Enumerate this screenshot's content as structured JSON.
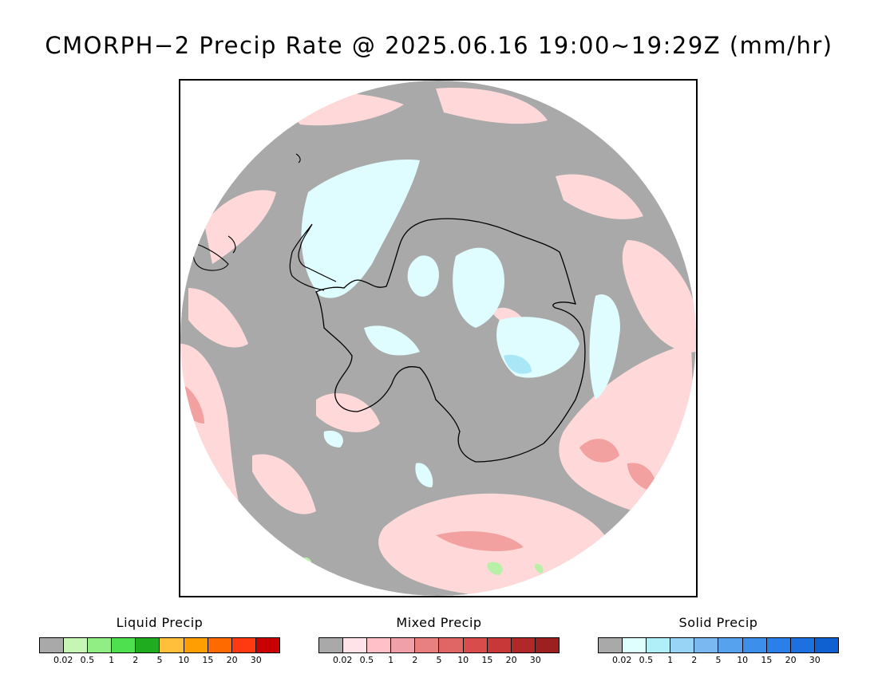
{
  "title": "CMORPH−2 Precip Rate @ 2025.06.16 19:00~19:29Z (mm/hr)",
  "map": {
    "projection": "south-polar-stereographic",
    "colors": {
      "no_precip": "#a9a9a9",
      "ocean_outside_disc": "#ffffff",
      "mixed_light": "#ffd9d9",
      "mixed_moderate": "#f2a0a0",
      "mixed_heavy": "#e57373",
      "solid_light": "#dffcff",
      "solid_moderate": "#a9e6f6",
      "liquid_light": "#b9f0a8",
      "coastline": "#000000"
    }
  },
  "legends": [
    {
      "title": "Liquid Precip",
      "colors": [
        "#a9a9a9",
        "#c6f5b6",
        "#90ee85",
        "#4fe04f",
        "#1fad1f",
        "#ffbf3a",
        "#ff9e00",
        "#ff6a00",
        "#ff3a10",
        "#c80000"
      ],
      "ticks": [
        "0.02",
        "0.5",
        "1",
        "2",
        "5",
        "10",
        "15",
        "20",
        "30"
      ]
    },
    {
      "title": "Mixed Precip",
      "colors": [
        "#a9a9a9",
        "#ffe3e8",
        "#ffc0c8",
        "#f0a0a8",
        "#e88080",
        "#e06666",
        "#d84c4c",
        "#c83838",
        "#b02828",
        "#9c2020"
      ],
      "ticks": [
        "0.02",
        "0.5",
        "1",
        "2",
        "5",
        "10",
        "15",
        "20",
        "30"
      ]
    },
    {
      "title": "Solid Precip",
      "colors": [
        "#a9a9a9",
        "#dfffff",
        "#b0eef8",
        "#98d4f6",
        "#7ab8f2",
        "#56a2ee",
        "#3c90ec",
        "#2a80e8",
        "#1c70e0",
        "#0f60d0"
      ],
      "ticks": [
        "0.02",
        "0.5",
        "1",
        "2",
        "5",
        "10",
        "15",
        "20",
        "30"
      ]
    }
  ]
}
